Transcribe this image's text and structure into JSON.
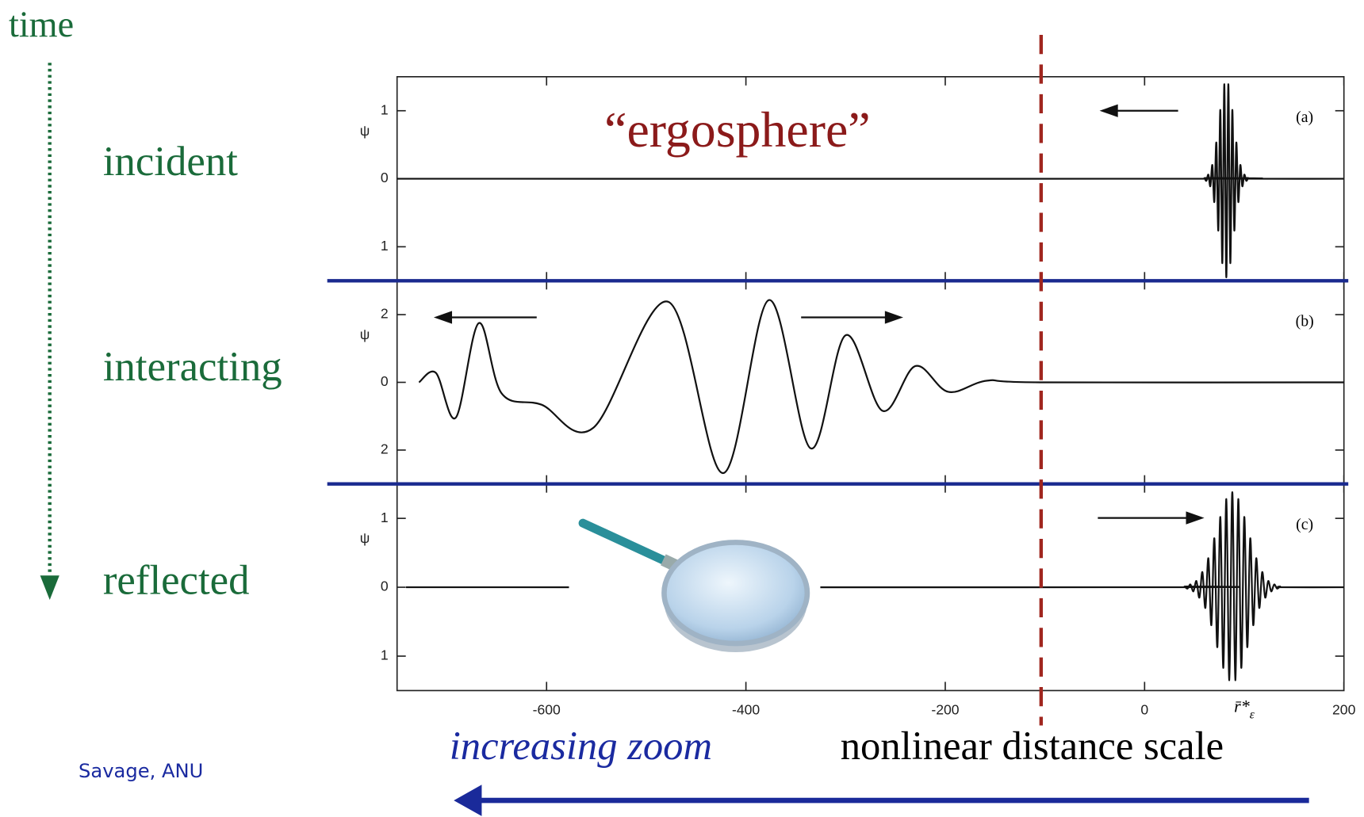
{
  "slide": {
    "time_label": "time",
    "stages": [
      "incident",
      "interacting",
      "reflected"
    ],
    "credit": "Savage, ANU",
    "zoom_note": "increasing zoom",
    "scale_note": "nonlinear distance scale"
  },
  "chart_data": [
    {
      "type": "line",
      "panel_label": "(a)",
      "ylabel": "ψ",
      "annotation": "“ergosphere”",
      "color": "#111111",
      "xlim": [
        -750,
        200
      ],
      "xticks": [
        -600,
        -400,
        -200,
        0,
        200
      ],
      "ylim": [
        -1.5,
        1.5
      ],
      "yticks": [
        1,
        0,
        {
          "value": -1,
          "label": "1"
        }
      ],
      "x": [
        -750,
        58,
        60,
        62,
        64,
        66,
        68,
        70,
        72,
        74,
        76,
        78,
        80,
        82,
        84,
        86,
        88,
        90,
        92,
        94,
        96,
        98,
        100,
        102,
        104,
        106,
        200
      ],
      "values": [
        0,
        0,
        0.01,
        -0.03,
        0.06,
        -0.11,
        0.2,
        -0.34,
        0.53,
        -0.76,
        1.01,
        -1.24,
        1.39,
        -1.45,
        1.39,
        -1.24,
        1.01,
        -0.76,
        0.53,
        -0.34,
        0.2,
        -0.11,
        0.06,
        -0.03,
        0.01,
        0,
        0
      ]
    },
    {
      "type": "line",
      "panel_label": "(b)",
      "ylabel": "ψ",
      "color": "#111111",
      "xlim": [
        -750,
        200
      ],
      "xticks": [
        -600,
        -400,
        -200,
        0,
        200
      ],
      "ylim": [
        -3,
        3
      ],
      "yticks": [
        2,
        0,
        {
          "value": -2,
          "label": "2"
        }
      ],
      "x": [
        -728,
        -711,
        -691,
        -668,
        -645,
        -605,
        -553,
        -478,
        -423,
        -377,
        -335,
        -300,
        -263,
        -230,
        -197,
        -158,
        -105,
        200
      ],
      "values": [
        0,
        0.28,
        -1.04,
        1.75,
        -0.33,
        -0.66,
        -1.34,
        2.38,
        -2.68,
        2.43,
        -1.95,
        1.39,
        -0.84,
        0.48,
        -0.28,
        0.05,
        0,
        0
      ]
    },
    {
      "type": "line",
      "panel_label": "(c)",
      "ylabel": "ψ",
      "color": "#111111",
      "x_label": "r̄*",
      "x_label_sub": "ε",
      "x_label_at": 100,
      "xlim": [
        -750,
        200
      ],
      "xticks": [
        -600,
        -400,
        -200,
        0,
        200
      ],
      "ylim": [
        -1.5,
        1.5
      ],
      "yticks": [
        1,
        0,
        {
          "value": -1,
          "label": "1"
        }
      ],
      "x": [
        -741,
        37,
        40,
        43,
        46,
        49,
        52,
        55,
        58,
        61,
        64,
        67,
        70,
        73,
        76,
        79,
        82,
        85,
        88,
        91,
        94,
        97,
        100,
        103,
        106,
        109,
        112,
        115,
        118,
        121,
        124,
        127,
        130,
        133,
        136,
        139,
        200
      ],
      "values": [
        0,
        0,
        0.01,
        -0.02,
        0.04,
        -0.06,
        0.09,
        -0.15,
        0.22,
        -0.3,
        0.42,
        -0.55,
        0.71,
        -0.87,
        1.02,
        -1.17,
        1.28,
        -1.35,
        1.38,
        -1.35,
        1.28,
        -1.17,
        1.02,
        -0.87,
        0.71,
        -0.55,
        0.42,
        -0.3,
        0.22,
        -0.15,
        0.09,
        -0.06,
        0.04,
        -0.02,
        0.01,
        0,
        0
      ]
    }
  ]
}
